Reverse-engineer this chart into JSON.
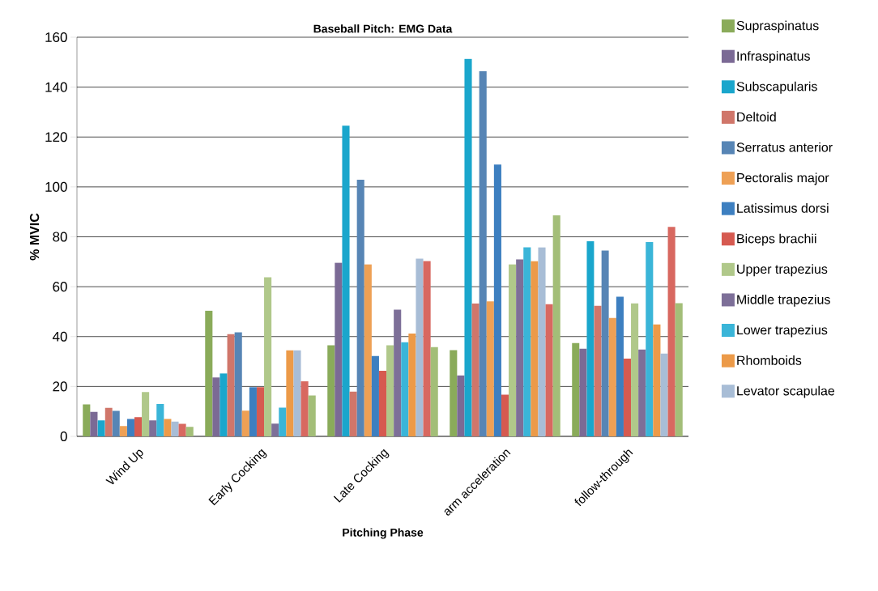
{
  "chart_data": {
    "type": "bar",
    "title": "Baseball Pitch: EMG Data",
    "xlabel": "Pitching Phase",
    "ylabel": "% MVIC",
    "categories": [
      "Wind Up",
      "Early Cocking",
      "Late Cocking",
      "arm acceleration",
      "follow-through"
    ],
    "ylim": [
      0,
      160
    ],
    "yticks": [
      0,
      20,
      40,
      60,
      80,
      100,
      120,
      140,
      160
    ],
    "grid": "y",
    "legend": "right",
    "series": [
      {
        "name": "Supraspinatus",
        "color": "#8aab5a",
        "values": [
          12.8,
          50.4,
          36.5,
          34.6,
          37.4
        ]
      },
      {
        "name": "Infraspinatus",
        "color": "#7b6a95",
        "values": [
          9.8,
          23.6,
          69.6,
          24.4,
          35.1
        ]
      },
      {
        "name": "Subscapularis",
        "color": "#1aa6cc",
        "values": [
          6.4,
          25.2,
          124.5,
          151.3,
          78.2
        ]
      },
      {
        "name": "Deltoid",
        "color": "#d0766a",
        "values": [
          11.4,
          41,
          17.9,
          53.3,
          52.3
        ]
      },
      {
        "name": "Serratus anterior",
        "color": "#5785b5",
        "values": [
          10.2,
          41.7,
          102.9,
          146.4,
          74.5
        ]
      },
      {
        "name": "Pectoralis major",
        "color": "#eea055",
        "values": [
          4.1,
          10.3,
          69,
          54.1,
          47.5
        ]
      },
      {
        "name": "Latissimus dorsi",
        "color": "#3d7fc0",
        "values": [
          7,
          19.7,
          32.2,
          109,
          56
        ]
      },
      {
        "name": "Biceps brachii",
        "color": "#d65a50",
        "values": [
          7.7,
          19.7,
          26.3,
          16.7,
          31.2
        ]
      },
      {
        "name": "Upper trapezius",
        "color": "#b0c88a",
        "values": [
          17.8,
          63.8,
          36.5,
          69,
          53.3
        ]
      },
      {
        "name": "Middle trapezius",
        "color": "#7d6f98",
        "values": [
          6.4,
          5.1,
          50.8,
          71,
          34.8
        ]
      },
      {
        "name": "Lower trapezius",
        "color": "#3ab5d8",
        "values": [
          13,
          11.5,
          37.7,
          75.8,
          77.9
        ]
      },
      {
        "name": "Rhomboids",
        "color": "#ec9a48",
        "values": [
          7,
          34.5,
          41.2,
          70.3,
          44.9
        ]
      },
      {
        "name": "Levator scapulae",
        "color": "#a8bdd6",
        "values": [
          5.9,
          34.5,
          71.2,
          75.8,
          33.2
        ]
      },
      {
        "color": "#d86860",
        "values": [
          5,
          22.1,
          70.3,
          53,
          84
        ]
      },
      {
        "color": "#a3be78",
        "values": [
          3.8,
          16.4,
          35.8,
          88.6,
          53.4
        ]
      }
    ]
  }
}
